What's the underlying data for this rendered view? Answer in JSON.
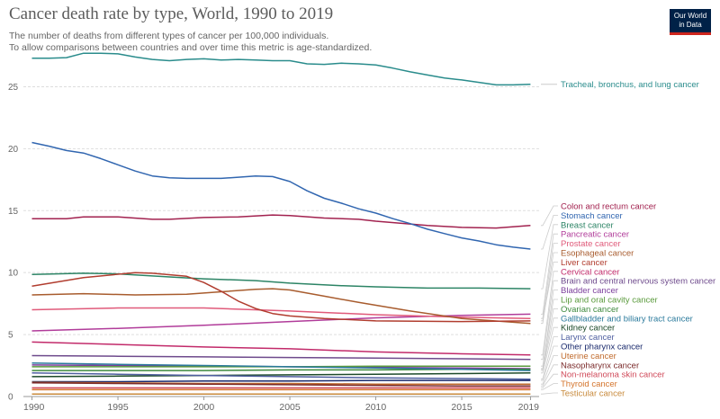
{
  "header": {
    "title": "Cancer death rate by type, World, 1990 to 2019",
    "subtitle_line1": "The number of deaths from different types of cancer per 100,000 individuals.",
    "subtitle_line2": "To allow comparisons between countries and over time this metric is age-standardized.",
    "logo_line1": "Our World",
    "logo_line2": "in Data"
  },
  "chart_data": {
    "type": "line",
    "title": "Cancer death rate by type, World, 1990 to 2019",
    "xlim": [
      1989.5,
      2019.5
    ],
    "ylim": [
      0,
      27.5
    ],
    "x_ticks": [
      1990,
      1995,
      2000,
      2005,
      2010,
      2015,
      2019
    ],
    "y_ticks": [
      0,
      5,
      10,
      15,
      20,
      25
    ],
    "grid": "horizontal dashed",
    "legend": "right, line labels",
    "series": [
      {
        "name": "Tracheal, bronchus, and lung cancer",
        "color": "#2a8c8c",
        "x": [
          1990,
          1991,
          1992,
          1993,
          1994,
          1995,
          1996,
          1997,
          1998,
          1999,
          2000,
          2001,
          2002,
          2003,
          2004,
          2005,
          2006,
          2007,
          2008,
          2009,
          2010,
          2011,
          2012,
          2013,
          2014,
          2015,
          2016,
          2017,
          2018,
          2019
        ],
        "values": [
          27.3,
          27.3,
          27.35,
          27.7,
          27.7,
          27.65,
          27.4,
          27.2,
          27.1,
          27.2,
          27.25,
          27.15,
          27.2,
          27.15,
          27.1,
          27.1,
          26.85,
          26.8,
          26.9,
          26.85,
          26.75,
          26.5,
          26.2,
          25.95,
          25.7,
          25.55,
          25.35,
          25.15,
          25.15,
          25.2
        ]
      },
      {
        "name": "Colon and rectum cancer",
        "color": "#a2224f",
        "x": [
          1990,
          1992,
          1993,
          1995,
          1997,
          1998,
          2000,
          2002,
          2004,
          2005,
          2007,
          2009,
          2010,
          2013,
          2015,
          2017,
          2019
        ],
        "values": [
          14.35,
          14.35,
          14.5,
          14.5,
          14.3,
          14.3,
          14.45,
          14.5,
          14.65,
          14.6,
          14.4,
          14.3,
          14.15,
          13.8,
          13.65,
          13.6,
          13.8
        ]
      },
      {
        "name": "Stomach cancer",
        "color": "#3166b0",
        "x": [
          1990,
          1991,
          1992,
          1993,
          1994,
          1995,
          1996,
          1997,
          1998,
          1999,
          2000,
          2001,
          2002,
          2003,
          2004,
          2005,
          2006,
          2007,
          2008,
          2009,
          2010,
          2011,
          2012,
          2013,
          2014,
          2015,
          2016,
          2017,
          2018,
          2019
        ],
        "values": [
          20.5,
          20.2,
          19.85,
          19.65,
          19.2,
          18.7,
          18.2,
          17.8,
          17.65,
          17.6,
          17.6,
          17.6,
          17.7,
          17.8,
          17.75,
          17.35,
          16.6,
          16.0,
          15.6,
          15.15,
          14.8,
          14.35,
          13.95,
          13.5,
          13.15,
          12.8,
          12.55,
          12.25,
          12.05,
          11.9
        ]
      },
      {
        "name": "Breast cancer",
        "color": "#2c8465",
        "x": [
          1990,
          1993,
          1995,
          1998,
          2000,
          2003,
          2005,
          2008,
          2010,
          2013,
          2016,
          2019
        ],
        "values": [
          9.85,
          9.95,
          9.9,
          9.65,
          9.5,
          9.35,
          9.15,
          8.95,
          8.85,
          8.75,
          8.75,
          8.7
        ]
      },
      {
        "name": "Pancreatic cancer",
        "color": "#b13c9a",
        "x": [
          1990,
          1995,
          2000,
          2005,
          2010,
          2015,
          2019
        ],
        "values": [
          5.3,
          5.5,
          5.75,
          6.05,
          6.35,
          6.55,
          6.65
        ]
      },
      {
        "name": "Prostate cancer",
        "color": "#e05a7a",
        "x": [
          1990,
          1995,
          2000,
          2005,
          2010,
          2015,
          2019
        ],
        "values": [
          7.0,
          7.15,
          7.15,
          6.9,
          6.6,
          6.4,
          6.3
        ]
      },
      {
        "name": "Esophageal cancer",
        "color": "#a85c2e",
        "x": [
          1990,
          1993,
          1996,
          1999,
          2001,
          2003,
          2004,
          2005,
          2007,
          2009,
          2012,
          2015,
          2019
        ],
        "values": [
          8.2,
          8.3,
          8.2,
          8.25,
          8.45,
          8.65,
          8.7,
          8.6,
          8.1,
          7.6,
          6.9,
          6.3,
          5.9
        ]
      },
      {
        "name": "Liver cancer",
        "color": "#b13d2f",
        "x": [
          1990,
          1993,
          1996,
          1997,
          1999,
          2000,
          2001,
          2002,
          2003,
          2004,
          2005,
          2007,
          2010,
          2015,
          2019
        ],
        "values": [
          8.9,
          9.6,
          10.0,
          9.95,
          9.7,
          9.2,
          8.5,
          7.7,
          7.1,
          6.7,
          6.5,
          6.3,
          6.1,
          6.05,
          6.1
        ]
      },
      {
        "name": "Cervical cancer",
        "color": "#c22a6a",
        "x": [
          1990,
          1995,
          2000,
          2005,
          2010,
          2015,
          2019
        ],
        "values": [
          4.4,
          4.2,
          4.0,
          3.85,
          3.6,
          3.45,
          3.35
        ]
      },
      {
        "name": "Brain and central nervous system cancer",
        "color": "#6e4a8c",
        "x": [
          1990,
          1995,
          2000,
          2005,
          2010,
          2015,
          2019
        ],
        "values": [
          3.3,
          3.25,
          3.2,
          3.15,
          3.1,
          3.05,
          3.0
        ]
      },
      {
        "name": "Bladder cancer",
        "color": "#7c3f9c",
        "x": [
          1990,
          1995,
          2000,
          2005,
          2010,
          2015,
          2019
        ],
        "values": [
          2.55,
          2.5,
          2.45,
          2.4,
          2.35,
          2.3,
          2.25
        ]
      },
      {
        "name": "Lip and oral cavity cancer",
        "color": "#5a9a3c",
        "x": [
          1990,
          1995,
          2000,
          2005,
          2010,
          2015,
          2019
        ],
        "values": [
          2.4,
          2.4,
          2.4,
          2.4,
          2.45,
          2.45,
          2.45
        ]
      },
      {
        "name": "Ovarian cancer",
        "color": "#3e8a3e",
        "x": [
          1990,
          1995,
          2000,
          2005,
          2010,
          2015,
          2019
        ],
        "values": [
          2.1,
          2.1,
          2.1,
          2.15,
          2.15,
          2.2,
          2.2
        ]
      },
      {
        "name": "Gallbladder and biliary tract cancer",
        "color": "#2b7a9c",
        "x": [
          1990,
          1995,
          2000,
          2005,
          2010,
          2015,
          2019
        ],
        "values": [
          2.7,
          2.6,
          2.5,
          2.4,
          2.3,
          2.2,
          2.1
        ]
      },
      {
        "name": "Kidney cancer",
        "color": "#1d4a2a",
        "x": [
          1990,
          1995,
          2000,
          2005,
          2010,
          2015,
          2019
        ],
        "values": [
          1.6,
          1.65,
          1.7,
          1.75,
          1.8,
          1.85,
          1.9
        ]
      },
      {
        "name": "Larynx cancer",
        "color": "#4f5fa0",
        "x": [
          1990,
          1995,
          2000,
          2005,
          2010,
          2015,
          2019
        ],
        "values": [
          1.9,
          1.8,
          1.7,
          1.6,
          1.5,
          1.45,
          1.4
        ]
      },
      {
        "name": "Other pharynx cancer",
        "color": "#1a2a6c",
        "x": [
          1990,
          1995,
          2000,
          2005,
          2010,
          2015,
          2019
        ],
        "values": [
          1.2,
          1.2,
          1.25,
          1.25,
          1.3,
          1.3,
          1.3
        ]
      },
      {
        "name": "Uterine cancer",
        "color": "#c06a2c",
        "x": [
          1990,
          1995,
          2000,
          2005,
          2010,
          2015,
          2019
        ],
        "values": [
          1.15,
          1.1,
          1.05,
          1.05,
          1.0,
          1.0,
          1.0
        ]
      },
      {
        "name": "Nasopharynx cancer",
        "color": "#7a2a2a",
        "x": [
          1990,
          1995,
          2000,
          2005,
          2010,
          2015,
          2019
        ],
        "values": [
          1.1,
          1.05,
          1.0,
          0.95,
          0.9,
          0.85,
          0.85
        ]
      },
      {
        "name": "Non-melanoma skin cancer",
        "color": "#d04a5a",
        "x": [
          1990,
          1995,
          2000,
          2005,
          2010,
          2015,
          2019
        ],
        "values": [
          0.7,
          0.7,
          0.7,
          0.7,
          0.7,
          0.7,
          0.7
        ]
      },
      {
        "name": "Thyroid cancer",
        "color": "#d4742c",
        "x": [
          1990,
          1995,
          2000,
          2005,
          2010,
          2015,
          2019
        ],
        "values": [
          0.55,
          0.55,
          0.55,
          0.55,
          0.55,
          0.55,
          0.55
        ]
      },
      {
        "name": "Testicular cancer",
        "color": "#c88a3c",
        "x": [
          1990,
          1995,
          2000,
          2005,
          2010,
          2015,
          2019
        ],
        "values": [
          0.2,
          0.2,
          0.2,
          0.2,
          0.2,
          0.2,
          0.2
        ]
      }
    ]
  }
}
